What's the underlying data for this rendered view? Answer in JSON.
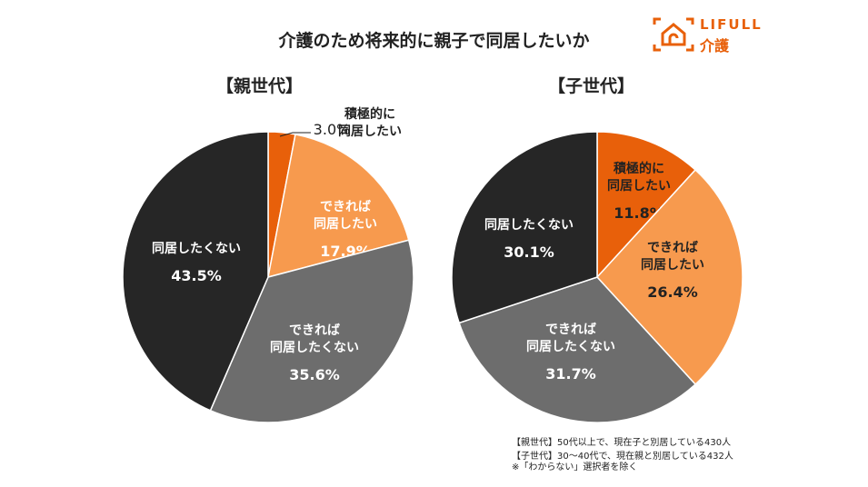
{
  "title": "介護のため将来的に親子で同居したいか",
  "logo": {
    "line1": "LIFULL",
    "line2": "介護"
  },
  "colors": {
    "actively": "#e8600a",
    "if_possible_yes": "#f79a4e",
    "if_possible_no": "#6d6d6d",
    "no": "#262626"
  },
  "chart_data": [
    {
      "type": "pie",
      "title": "【親世代】",
      "slices": [
        {
          "label": "積極的に同居したい",
          "value": 3.0,
          "pct": "3.0%"
        },
        {
          "label": "できれば同居したい",
          "value": 17.9,
          "pct": "17.9%"
        },
        {
          "label": "できれば同居したくない",
          "value": 35.6,
          "pct": "35.6%"
        },
        {
          "label": "同居したくない",
          "value": 43.5,
          "pct": "43.5%"
        }
      ]
    },
    {
      "type": "pie",
      "title": "【子世代】",
      "slices": [
        {
          "label": "積極的に同居したい",
          "value": 11.8,
          "pct": "11.8%"
        },
        {
          "label": "できれば同居したい",
          "value": 26.4,
          "pct": "26.4%"
        },
        {
          "label": "できれば同居したくない",
          "value": 31.7,
          "pct": "31.7%"
        },
        {
          "label": "同居したくない",
          "value": 30.1,
          "pct": "30.1%"
        }
      ]
    }
  ],
  "notes": [
    "【親世代】50代以上で、現在子と別居している430人",
    "【子世代】30～40代で、現在親と別居している432人",
    "※「わからない」選択者を除く"
  ]
}
